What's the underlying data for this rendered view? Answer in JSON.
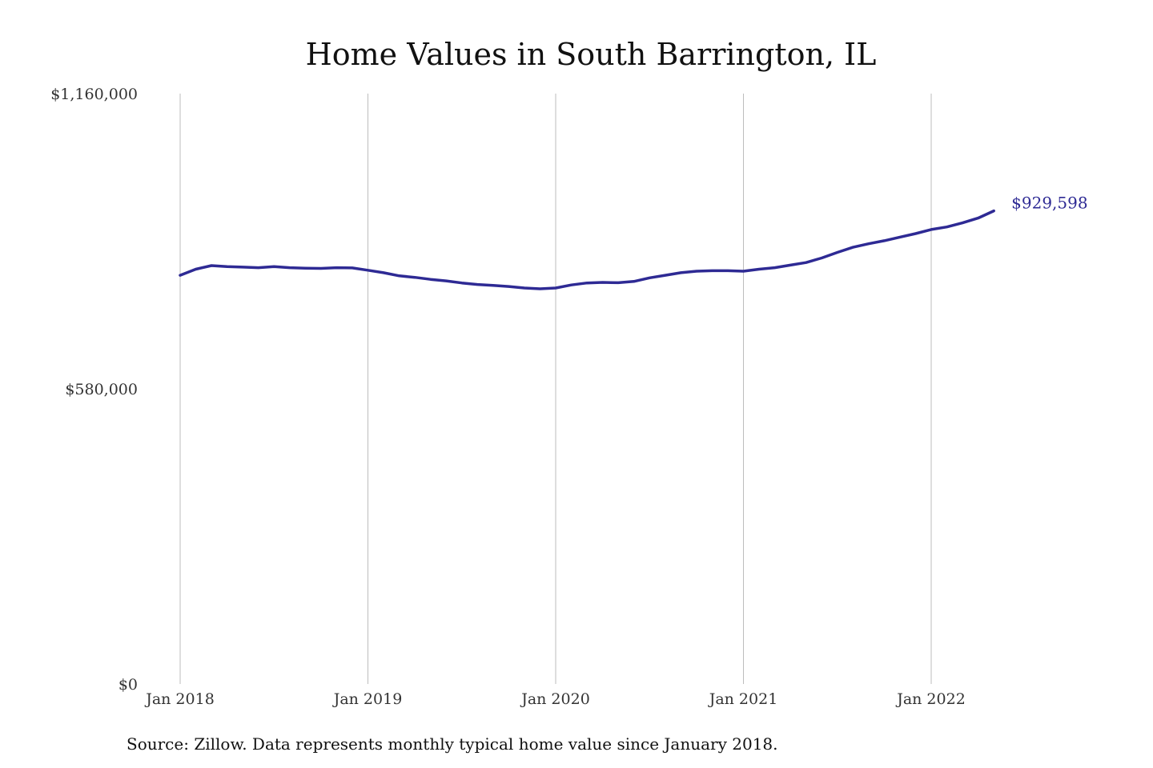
{
  "chart_data": {
    "type": "line",
    "title": "Home Values in South Barrington, IL",
    "xlabel": "",
    "ylabel": "",
    "ylim": [
      0,
      1160000
    ],
    "grid": "vertical",
    "legend": "none",
    "x_ticks": [
      {
        "label": "Jan 2018",
        "value": "2018-01"
      },
      {
        "label": "Jan 2019",
        "value": "2019-01"
      },
      {
        "label": "Jan 2020",
        "value": "2020-01"
      },
      {
        "label": "Jan 2021",
        "value": "2021-01"
      },
      {
        "label": "Jan 2022",
        "value": "2022-01"
      }
    ],
    "y_ticks": [
      {
        "label": "$1,160,000",
        "value": 1160000
      },
      {
        "label": "$580,000",
        "value": 580000
      },
      {
        "label": "$0",
        "value": 0
      }
    ],
    "series": [
      {
        "color": "#2e2a94",
        "x": [
          "2018-01",
          "2018-02",
          "2018-03",
          "2018-04",
          "2018-05",
          "2018-06",
          "2018-07",
          "2018-08",
          "2018-09",
          "2018-10",
          "2018-11",
          "2018-12",
          "2019-01",
          "2019-02",
          "2019-03",
          "2019-04",
          "2019-05",
          "2019-06",
          "2019-07",
          "2019-08",
          "2019-09",
          "2019-10",
          "2019-11",
          "2019-12",
          "2020-01",
          "2020-02",
          "2020-03",
          "2020-04",
          "2020-05",
          "2020-06",
          "2020-07",
          "2020-08",
          "2020-09",
          "2020-10",
          "2020-11",
          "2020-12",
          "2021-01",
          "2021-02",
          "2021-03",
          "2021-04",
          "2021-05",
          "2021-06",
          "2021-07",
          "2021-08",
          "2021-09",
          "2021-10",
          "2021-11",
          "2021-12",
          "2022-01",
          "2022-02",
          "2022-03",
          "2022-04",
          "2022-05"
        ],
        "values": [
          803000,
          815000,
          822000,
          820000,
          819000,
          818000,
          820000,
          818000,
          817000,
          816500,
          818000,
          817500,
          813000,
          808000,
          802000,
          799000,
          795000,
          792000,
          788000,
          785000,
          783000,
          781000,
          778000,
          776500,
          778000,
          784000,
          788000,
          789000,
          788500,
          791000,
          798000,
          803000,
          808000,
          811000,
          812000,
          812000,
          811000,
          815000,
          818000,
          823000,
          828000,
          837000,
          848000,
          858000,
          865000,
          871000,
          878000,
          885000,
          893000,
          898000,
          906000,
          915500,
          929598
        ]
      }
    ],
    "annotations": [
      {
        "text": "$929,598",
        "x": "2022-05",
        "y": 929598,
        "color": "#2e2a94"
      }
    ]
  },
  "source_note": "Source: Zillow. Data represents monthly typical home value since January 2018."
}
